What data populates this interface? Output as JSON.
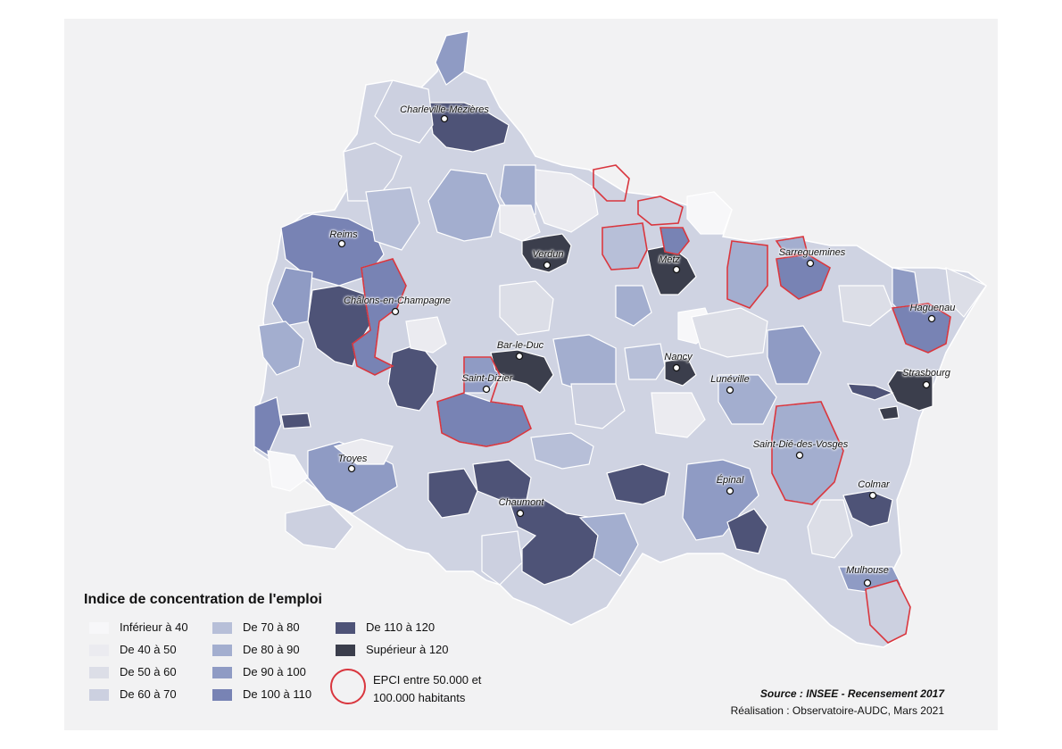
{
  "legend": {
    "title": "Indice de concentration de l'emploi",
    "classes": [
      {
        "label": "Inférieur à 40",
        "color": "#f7f7f9"
      },
      {
        "label": "De 40 à 50",
        "color": "#ebebf0"
      },
      {
        "label": "De 50 à 60",
        "color": "#dcdee7"
      },
      {
        "label": "De 60 à 70",
        "color": "#ccd0e0"
      },
      {
        "label": "De 70 à 80",
        "color": "#b7bfd8"
      },
      {
        "label": "De 80 à 90",
        "color": "#a3aecf"
      },
      {
        "label": "De 90 à 100",
        "color": "#8f9bc4"
      },
      {
        "label": "De 100 à 110",
        "color": "#7883b4"
      },
      {
        "label": "De 110 à 120",
        "color": "#4e5377"
      },
      {
        "label": "Supérieur à 120",
        "color": "#3b3e4c"
      }
    ],
    "epci_label": "EPCI entre 50.000 et 100.000 habitants",
    "epci_color": "#d9363e"
  },
  "cities": [
    {
      "name": "Charleville-Mézières"
    },
    {
      "name": "Reims"
    },
    {
      "name": "Verdun"
    },
    {
      "name": "Metz"
    },
    {
      "name": "Sarreguemines"
    },
    {
      "name": "Châlons-en-Champagne"
    },
    {
      "name": "Haguenau"
    },
    {
      "name": "Bar-le-Duc"
    },
    {
      "name": "Nancy"
    },
    {
      "name": "Strasbourg"
    },
    {
      "name": "Saint-Dizier"
    },
    {
      "name": "Lunéville"
    },
    {
      "name": "Saint-Dié-des-Vosges"
    },
    {
      "name": "Troyes"
    },
    {
      "name": "Épinal"
    },
    {
      "name": "Colmar"
    },
    {
      "name": "Chaumont"
    },
    {
      "name": "Mulhouse"
    }
  ],
  "source": "Source : INSEE - Recensement 2017",
  "credit": "Réalisation : Observatoire-AUDC, Mars 2021"
}
